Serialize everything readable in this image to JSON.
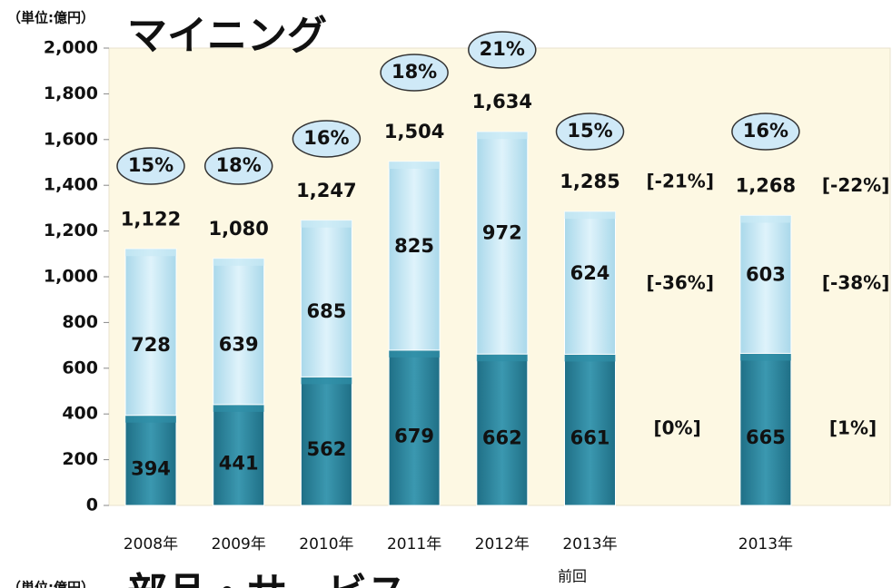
{
  "chart_data": {
    "type": "stacked_bar",
    "title": "マイニング",
    "unit_label": "（単位:億円）",
    "categories": [
      "2008年",
      "2009年",
      "2010年",
      "2011年",
      "2012年",
      "2013年",
      null,
      "2013年"
    ],
    "category_note": "前回",
    "series": [
      {
        "color": "#2f8ea6",
        "values": [
          394,
          441,
          562,
          679,
          662,
          661,
          null,
          665
        ]
      },
      {
        "color": "#c9e9f5",
        "values": [
          728,
          639,
          685,
          825,
          972,
          624,
          null,
          603
        ]
      }
    ],
    "totals": [
      1122,
      1080,
      1247,
      1504,
      1634,
      1285,
      null,
      1268
    ],
    "totals_labels": [
      "1,122",
      "1,080",
      "1,247",
      "1,504",
      "1,634",
      "1,285",
      null,
      "1,268"
    ],
    "margins": [
      15,
      18,
      16,
      18,
      21,
      15,
      null,
      16
    ],
    "margin_labels": [
      "15%",
      "18%",
      "16%",
      "18%",
      "21%",
      "15%",
      null,
      "16%"
    ],
    "change_labels": {
      "total": [
        null,
        null,
        null,
        null,
        null,
        "[-21%]",
        null,
        "[-22%]"
      ],
      "top": [
        null,
        null,
        null,
        null,
        null,
        "[-36%]",
        null,
        "[-38%]"
      ],
      "bottom": [
        null,
        null,
        null,
        null,
        null,
        "[0%]",
        null,
        "[1%]"
      ]
    },
    "ylim": [
      0,
      2000
    ],
    "yticks": [
      0,
      200,
      400,
      600,
      800,
      {
        "value": 1000,
        "label": "1,000"
      },
      {
        "value": 1200,
        "label": "1,200"
      },
      {
        "value": 1400,
        "label": "1,400"
      },
      {
        "value": 1600,
        "label": "1,600"
      },
      {
        "value": 1800,
        "label": "1,800"
      },
      {
        "value": 2000,
        "label": "2,000"
      }
    ],
    "next_unit_label": "（単位:億円）",
    "next_title": "部品・サービス"
  }
}
